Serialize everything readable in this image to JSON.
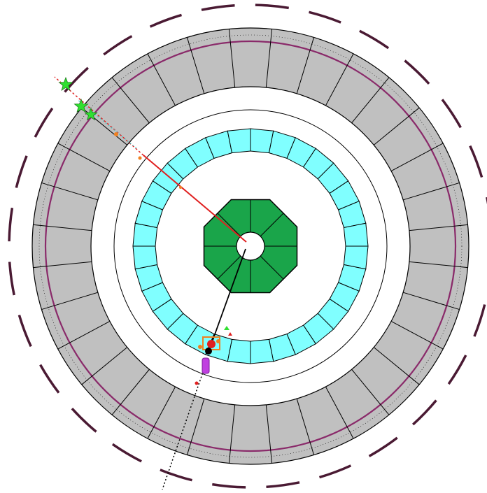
{
  "detector": {
    "colors": {
      "background": "#ffffff",
      "outer_dashes": "#4a1a33",
      "calorimeter_fill": "#c0c0c0",
      "calorimeter_edge": "#000000",
      "magenta_line": "#8a2a6a",
      "cyan_module_fill": "#80ffff",
      "inner_detector_fill": "#1aa54a",
      "beam_pipe_fill": "#ffffff",
      "track_red": "#e02020",
      "track_black": "#000000",
      "track_cyan": "#40c0c0",
      "hit_green": "#30e030",
      "hit_orange": "#f08020",
      "hit_purple": "#c040e0"
    },
    "layers": [
      {
        "name": "outer-muon-dashes",
        "count": 28
      },
      {
        "name": "hadronic-calorimeter",
        "segments": 32
      },
      {
        "name": "cyan-ring",
        "segments": 32
      },
      {
        "name": "inner-detector",
        "segments": 8
      }
    ],
    "icons": [
      "star-hit",
      "energy-deposit"
    ]
  }
}
